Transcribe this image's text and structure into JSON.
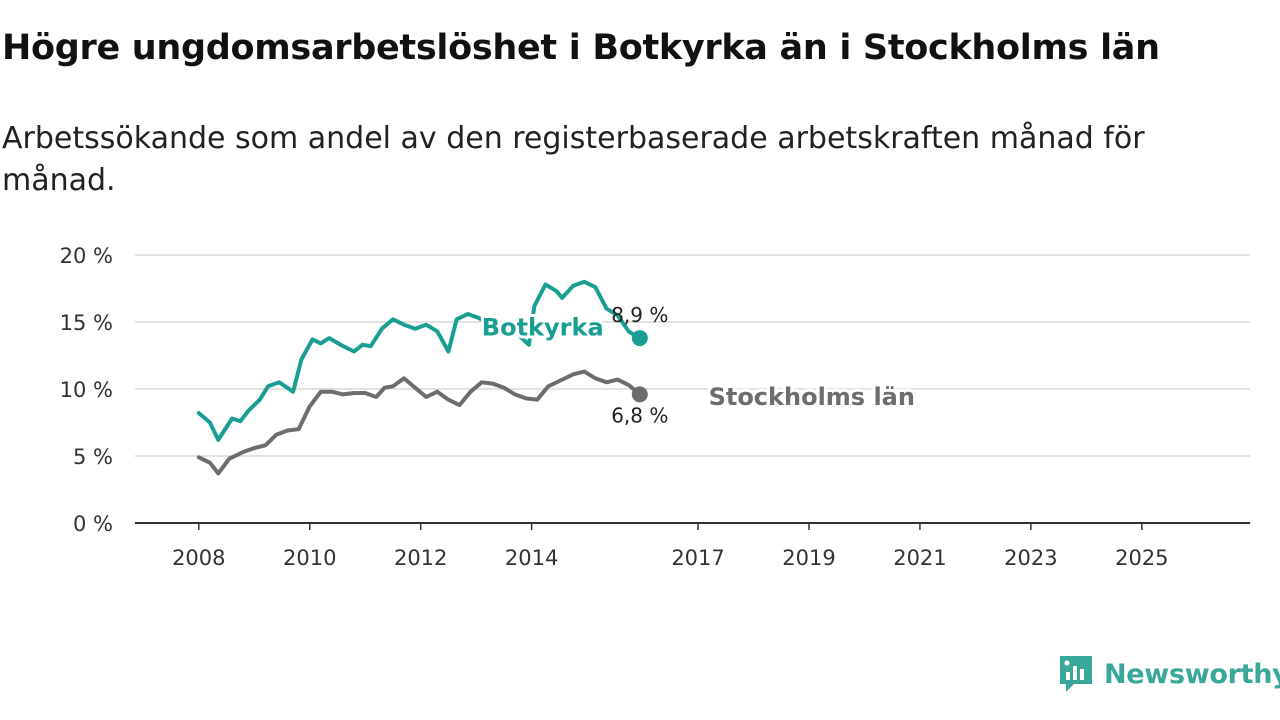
{
  "title": "Högre ungdomsarbetslöshet i Botkyrka än i Stockholms län",
  "subtitle": "Arbetssökande som andel av den registerbaserade arbetskraften månad för månad.",
  "brand": {
    "name": "Newsworthy",
    "icon": "newsworthy-logo-icon",
    "color": "#3aa79b"
  },
  "chart_data": {
    "type": "line",
    "title": "Högre ungdomsarbetslöshet i Botkyrka än i Stockholms län",
    "xlabel": "",
    "ylabel": "",
    "x_unit": "year",
    "xlim": [
      2006.85,
      2026.95
    ],
    "ylim": [
      0,
      20
    ],
    "y_ticks": [
      0,
      5,
      10,
      15,
      20
    ],
    "y_tick_labels": [
      "0 %",
      "5 %",
      "10 %",
      "15 %",
      "20 %"
    ],
    "x_ticks": [
      2008,
      2010,
      2012,
      2014,
      2017,
      2019,
      2021,
      2023,
      2025
    ],
    "x_tick_labels": [
      "2008",
      "2010",
      "2012",
      "2014",
      "2017",
      "2019",
      "2021",
      "2023",
      "2025"
    ],
    "grid": true,
    "series": [
      {
        "name": "Botkyrka",
        "color": "#1a9e92",
        "label": "Botkyrka",
        "end_label": "8,9 %",
        "points": [
          [
            2008.0,
            8.2
          ],
          [
            2008.2,
            7.5
          ],
          [
            2008.35,
            6.2
          ],
          [
            2008.6,
            7.8
          ],
          [
            2008.75,
            7.6
          ],
          [
            2008.9,
            8.4
          ],
          [
            2009.1,
            9.2
          ],
          [
            2009.25,
            10.2
          ],
          [
            2009.45,
            10.5
          ],
          [
            2009.7,
            9.8
          ],
          [
            2009.85,
            12.2
          ],
          [
            2010.05,
            13.7
          ],
          [
            2010.2,
            13.4
          ],
          [
            2010.35,
            13.8
          ],
          [
            2010.6,
            13.2
          ],
          [
            2010.8,
            12.8
          ],
          [
            2010.95,
            13.3
          ],
          [
            2011.1,
            13.2
          ],
          [
            2011.3,
            14.5
          ],
          [
            2011.5,
            15.2
          ],
          [
            2011.7,
            14.8
          ],
          [
            2011.9,
            14.5
          ],
          [
            2012.1,
            14.8
          ],
          [
            2012.3,
            14.3
          ],
          [
            2012.5,
            12.8
          ],
          [
            2012.65,
            15.2
          ],
          [
            2012.85,
            15.6
          ],
          [
            2013.05,
            15.3
          ],
          [
            2013.25,
            14.8
          ],
          [
            2013.45,
            14.7
          ],
          [
            2013.65,
            14.9
          ],
          [
            2013.8,
            13.9
          ],
          [
            2013.95,
            13.3
          ],
          [
            2014.05,
            16.2
          ],
          [
            2014.25,
            17.8
          ],
          [
            2014.45,
            17.3
          ],
          [
            2014.55,
            16.8
          ],
          [
            2014.75,
            17.7
          ],
          [
            2014.95,
            18.0
          ],
          [
            2015.15,
            17.6
          ],
          [
            2015.35,
            16.0
          ],
          [
            2015.55,
            15.5
          ],
          [
            2015.75,
            14.3
          ],
          [
            2015.95,
            13.8
          ]
        ]
      },
      {
        "name": "Stockholms län",
        "color": "#6e6c70",
        "label": "Stockholms län",
        "end_label": "6,8 %",
        "points": [
          [
            2008.0,
            4.9
          ],
          [
            2008.2,
            4.5
          ],
          [
            2008.35,
            3.7
          ],
          [
            2008.55,
            4.8
          ],
          [
            2008.8,
            5.3
          ],
          [
            2009.0,
            5.6
          ],
          [
            2009.2,
            5.8
          ],
          [
            2009.4,
            6.6
          ],
          [
            2009.6,
            6.9
          ],
          [
            2009.8,
            7.0
          ],
          [
            2010.0,
            8.7
          ],
          [
            2010.2,
            9.8
          ],
          [
            2010.4,
            9.8
          ],
          [
            2010.6,
            9.6
          ],
          [
            2010.8,
            9.7
          ],
          [
            2011.0,
            9.7
          ],
          [
            2011.2,
            9.4
          ],
          [
            2011.35,
            10.1
          ],
          [
            2011.5,
            10.2
          ],
          [
            2011.7,
            10.8
          ],
          [
            2011.9,
            10.1
          ],
          [
            2012.1,
            9.4
          ],
          [
            2012.3,
            9.8
          ],
          [
            2012.5,
            9.2
          ],
          [
            2012.7,
            8.8
          ],
          [
            2012.9,
            9.8
          ],
          [
            2013.1,
            10.5
          ],
          [
            2013.3,
            10.4
          ],
          [
            2013.5,
            10.1
          ],
          [
            2013.7,
            9.6
          ],
          [
            2013.9,
            9.3
          ],
          [
            2014.1,
            9.2
          ],
          [
            2014.3,
            10.2
          ],
          [
            2014.5,
            10.6
          ],
          [
            2014.75,
            11.1
          ],
          [
            2014.95,
            11.3
          ],
          [
            2015.15,
            10.8
          ],
          [
            2015.35,
            10.5
          ],
          [
            2015.55,
            10.7
          ],
          [
            2015.75,
            10.3
          ],
          [
            2015.95,
            9.6
          ]
        ]
      }
    ]
  }
}
